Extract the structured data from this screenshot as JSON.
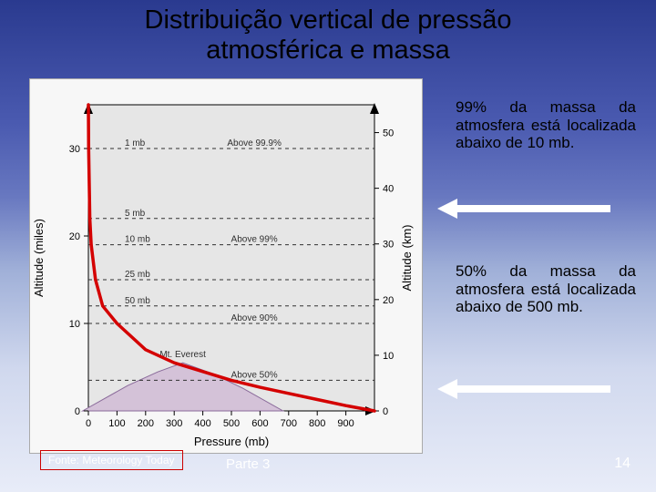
{
  "title_line1": "Distribuição vertical de pressão",
  "title_line2": "atmosférica e massa",
  "note1": "99% da massa da atmosfera está localizada abaixo de 10 mb.",
  "note2": "50% da massa da atmosfera está localizada abaixo de 500 mb.",
  "source": "Fonte: Meteorology Today",
  "parte": "Parte 3",
  "pagenum": "14",
  "arrow_color": "#ffffff",
  "chart": {
    "type": "line",
    "plot_bg": "#e6e6e6",
    "panel_bg": "#f7f7f7",
    "axis_color": "#000000",
    "grid_color": "#888888",
    "curve_color": "#d40000",
    "curve_width": 3.5,
    "text_color": "#303030",
    "dashed_color": "#303030",
    "label_fontsize": 13,
    "tick_fontsize": 11,
    "xlabel": "Pressure (mb)",
    "ylabel_left": "Altitude (miles)",
    "ylabel_right": "Altitude (km)",
    "xlim": [
      0,
      1000
    ],
    "xticks": [
      0,
      100,
      200,
      300,
      400,
      500,
      600,
      700,
      800,
      900
    ],
    "ylim_miles": [
      0,
      35
    ],
    "yticks_miles": [
      0,
      10,
      20,
      30
    ],
    "ylim_km": [
      0,
      55
    ],
    "yticks_km": [
      0,
      10,
      20,
      30,
      40,
      50
    ],
    "pressure_dashed": [
      {
        "mb": 1,
        "miles": 30,
        "label": "1 mb",
        "above": "Above 99.9%"
      },
      {
        "mb": 5,
        "miles": 22,
        "label": "5 mb"
      },
      {
        "mb": 10,
        "miles": 19,
        "label": "10 mb",
        "above": "Above 99%"
      },
      {
        "mb": 25,
        "miles": 15,
        "label": "25 mb"
      },
      {
        "mb": 50,
        "miles": 12,
        "label": "50 mb"
      },
      {
        "mb": 100,
        "miles": 10,
        "above": "Above 90%"
      },
      {
        "mb": 500,
        "miles": 3.5,
        "above": "Above 50%"
      }
    ],
    "curve_points_miles_vs_mb": [
      [
        0,
        35
      ],
      [
        1,
        30
      ],
      [
        5,
        22
      ],
      [
        10,
        19
      ],
      [
        25,
        15
      ],
      [
        50,
        12
      ],
      [
        100,
        10
      ],
      [
        200,
        7
      ],
      [
        300,
        5.5
      ],
      [
        400,
        4.5
      ],
      [
        500,
        3.5
      ],
      [
        600,
        2.7
      ],
      [
        700,
        2
      ],
      [
        800,
        1.3
      ],
      [
        900,
        0.6
      ],
      [
        1000,
        0
      ]
    ],
    "everest_label": "Mt. Everest",
    "everest_top_miles": 5.5,
    "mountain_color": "#d4c2d8",
    "mountain_edge": "#8a6a9a"
  }
}
